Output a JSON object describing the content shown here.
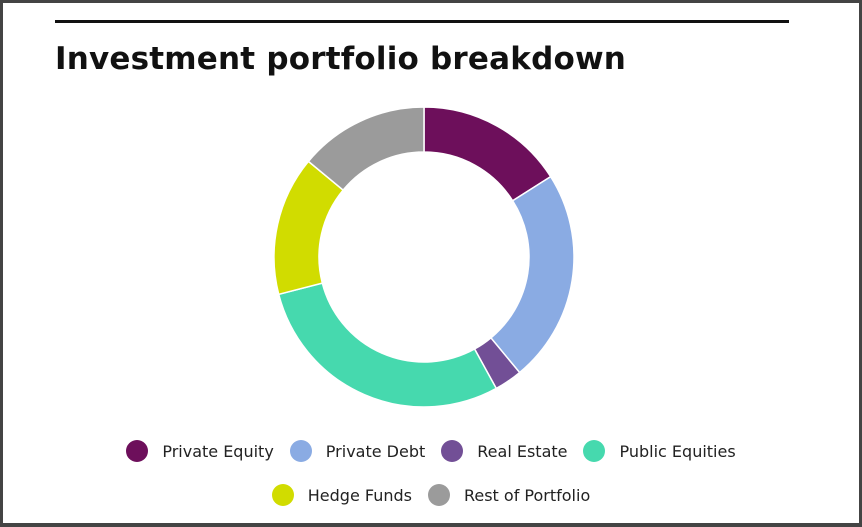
{
  "chart_data": {
    "type": "pie",
    "title": "Investment portfolio breakdown",
    "categories": [
      "Private Equity",
      "Private Debt",
      "Real Estate",
      "Public Equities",
      "Hedge Funds",
      "Rest of Portfolio"
    ],
    "values": [
      16,
      23,
      3,
      29,
      15,
      14
    ],
    "colors": [
      "#6d0f5b",
      "#8aabe3",
      "#724f96",
      "#46d9ae",
      "#d1dc00",
      "#9b9b9b"
    ]
  }
}
